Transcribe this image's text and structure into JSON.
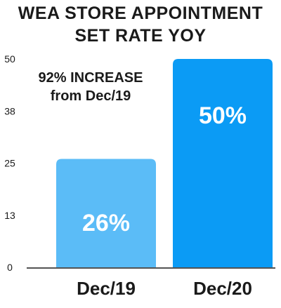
{
  "chart_data": {
    "type": "bar",
    "title_lines": [
      "WEA STORE APPOINTMENT",
      "SET RATE YOY"
    ],
    "categories": [
      "Dec/19",
      "Dec/20"
    ],
    "values": [
      26,
      50
    ],
    "data_labels": [
      "26%",
      "50%"
    ],
    "ylim": [
      0,
      50
    ],
    "yticks": [
      "0",
      "13",
      "25",
      "38",
      "50"
    ],
    "ytick_values": [
      0,
      12.5,
      25,
      37.5,
      50
    ],
    "annotation_lines": [
      "92% INCREASE",
      "from Dec/19"
    ],
    "colors": [
      "#5bbcf7",
      "#0b9bf5"
    ],
    "grid": false,
    "xlabel": "",
    "ylabel": ""
  }
}
